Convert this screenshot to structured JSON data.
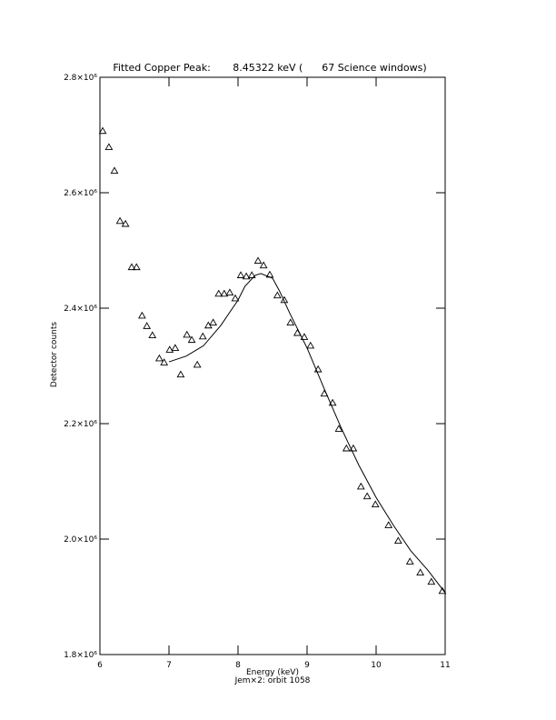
{
  "chart_data": {
    "type": "scatter",
    "title": "Fitted Copper Peak:       8.45322 keV (      67 Science windows)",
    "x_label": "Energy (keV)",
    "subtitle": "Jem×2: orbit 1058",
    "y_label": "Detector counts",
    "xlim": [
      6,
      11
    ],
    "xticks": [
      6,
      7,
      8,
      9,
      10,
      11
    ],
    "ylim": [
      1800000,
      2800000
    ],
    "yticks": [
      {
        "value": 1800000,
        "label": "1.8×10⁶"
      },
      {
        "value": 2000000,
        "label": "2.0×10⁶"
      },
      {
        "value": 2200000,
        "label": "2.2×10⁶"
      },
      {
        "value": 2400000,
        "label": "2.4×10⁶"
      },
      {
        "value": 2600000,
        "label": "2.6×10⁶"
      },
      {
        "value": 2800000,
        "label": "2.8×10⁶"
      }
    ],
    "grid": false,
    "series": [
      {
        "type": "scatter",
        "marker": "triangle",
        "color": "#000000",
        "x": [
          6.04,
          6.13,
          6.21,
          6.29,
          6.37,
          6.46,
          6.53,
          6.61,
          6.68,
          6.76,
          6.86,
          6.93,
          7.01,
          7.09,
          7.17,
          7.26,
          7.33,
          7.41,
          7.49,
          7.57,
          7.64,
          7.72,
          7.8,
          7.88,
          7.96,
          8.04,
          8.12,
          8.2,
          8.29,
          8.37,
          8.46,
          8.57,
          8.67,
          8.76,
          8.86,
          8.96,
          9.05,
          9.16,
          9.25,
          9.37,
          9.46,
          9.57,
          9.67,
          9.78,
          9.87,
          9.99,
          10.18,
          10.32,
          10.49,
          10.64,
          10.8,
          10.96
        ],
        "values": [
          2707000,
          2679000,
          2638000,
          2551000,
          2546000,
          2471000,
          2471000,
          2387000,
          2369000,
          2353000,
          2313000,
          2306000,
          2328000,
          2331000,
          2285000,
          2354000,
          2345000,
          2302000,
          2351000,
          2370000,
          2375000,
          2425000,
          2425000,
          2427000,
          2417000,
          2457000,
          2455000,
          2457000,
          2482000,
          2474000,
          2458000,
          2422000,
          2414000,
          2375000,
          2357000,
          2350000,
          2335000,
          2294000,
          2252000,
          2236000,
          2191000,
          2157000,
          2157000,
          2091000,
          2074000,
          2060000,
          2024000,
          1997000,
          1961000,
          1942000,
          1926000,
          1910000
        ]
      },
      {
        "type": "line",
        "color": "#000000",
        "x": [
          7.0,
          7.25,
          7.5,
          7.75,
          8.0,
          8.1,
          8.25,
          8.33,
          8.5,
          8.6,
          8.75,
          9.0,
          9.25,
          9.5,
          9.75,
          10.0,
          10.25,
          10.5,
          10.75,
          11.0
        ],
        "values": [
          2307000,
          2317000,
          2335000,
          2370000,
          2414000,
          2438000,
          2457000,
          2460000,
          2452000,
          2430000,
          2391000,
          2331000,
          2260000,
          2191000,
          2128000,
          2072000,
          2024000,
          1980000,
          1946000,
          1907000
        ]
      }
    ]
  }
}
